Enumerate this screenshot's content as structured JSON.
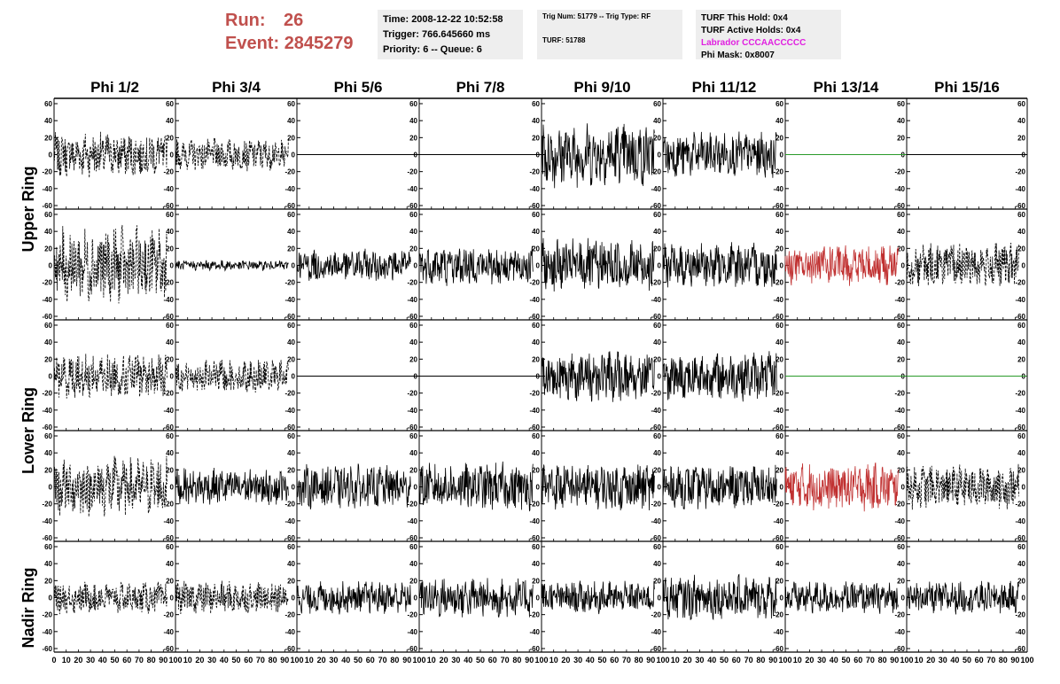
{
  "header": {
    "run_label": "Run:",
    "run_value": "26",
    "event_label": "Event:",
    "event_value": "2845279"
  },
  "info_boxes": {
    "time": "Time: 2008-12-22 10:52:58",
    "trigger": "Trigger: 766.645660 ms",
    "priority": "Priority: 6 -- Queue: 6",
    "trig_num": "Trig Num: 51779 -- Trig Type: RF",
    "turf": "TURF: 51788",
    "turf_this_hold": "TURF This Hold: 0x4",
    "turf_active_holds": "TURF Active Holds: 0x4",
    "labrador": "Labrador CCCAACCCCC",
    "phi_mask": "Phi Mask: 0x8007"
  },
  "colors": {
    "header_red": "#c0504d",
    "labrador_magenta": "#e020e0",
    "trace_black": "#000000",
    "trace_red": "#c03030",
    "trace_green": "#2a9a2a",
    "info_bg": "#eeeeee"
  },
  "chart_data": {
    "type": "line",
    "columns": [
      "Phi 1/2",
      "Phi 3/4",
      "Phi 5/6",
      "Phi 7/8",
      "Phi 9/10",
      "Phi 11/12",
      "Phi 13/14",
      "Phi 15/16"
    ],
    "ring_labels": [
      "Upper Ring",
      "Lower Ring",
      "Nadir Ring"
    ],
    "xlim": [
      0,
      100
    ],
    "ylim": [
      -60,
      60
    ],
    "y_ticks": [
      60,
      40,
      20,
      0,
      -20,
      -40,
      -60
    ],
    "x_ticks": [
      0,
      10,
      20,
      30,
      40,
      50,
      60,
      70,
      80,
      90,
      100
    ],
    "x_tick_labels": [
      "0",
      "10",
      "20",
      "30",
      "40",
      "50",
      "60",
      "70",
      "80",
      "90",
      "100"
    ],
    "x_tick_labels_short": [
      "10",
      "20",
      "30",
      "40",
      "50",
      "60",
      "70",
      "80",
      "90",
      "100"
    ],
    "trace_x_range": [
      0,
      93
    ],
    "panel_rows": [
      [
        {
          "style": "dashed",
          "amp": 22
        },
        {
          "style": "dashed",
          "amp": 16
        },
        {
          "style": "flat"
        },
        {
          "style": "flat"
        },
        {
          "style": "solid",
          "amp": 32
        },
        {
          "style": "solid",
          "amp": 22
        },
        {
          "style": "flat_green"
        },
        {
          "style": "flat"
        }
      ],
      [
        {
          "style": "dashed",
          "amp": 38
        },
        {
          "style": "solid",
          "amp": 5
        },
        {
          "style": "solid",
          "amp": 16
        },
        {
          "style": "solid",
          "amp": 20
        },
        {
          "style": "solid",
          "amp": 26
        },
        {
          "style": "solid",
          "amp": 22
        },
        {
          "style": "solid_red",
          "amp": 20
        },
        {
          "style": "dashed",
          "amp": 22
        }
      ],
      [
        {
          "style": "dashed",
          "amp": 22
        },
        {
          "style": "dashed",
          "amp": 16
        },
        {
          "style": "flat"
        },
        {
          "style": "flat"
        },
        {
          "style": "solid",
          "amp": 26
        },
        {
          "style": "solid",
          "amp": 24
        },
        {
          "style": "flat_green"
        },
        {
          "style": "flat_green"
        }
      ],
      [
        {
          "style": "dashed",
          "amp": 30
        },
        {
          "style": "solid",
          "amp": 18
        },
        {
          "style": "solid",
          "amp": 22
        },
        {
          "style": "solid",
          "amp": 24
        },
        {
          "style": "solid",
          "amp": 24
        },
        {
          "style": "solid",
          "amp": 22
        },
        {
          "style": "solid_red",
          "amp": 24
        },
        {
          "style": "dashed",
          "amp": 22
        }
      ],
      [
        {
          "style": "dashed",
          "amp": 16
        },
        {
          "style": "dashed",
          "amp": 16
        },
        {
          "style": "solid",
          "amp": 16
        },
        {
          "style": "solid",
          "amp": 20
        },
        {
          "style": "solid",
          "amp": 16
        },
        {
          "style": "solid",
          "amp": 22
        },
        {
          "style": "solid",
          "amp": 16
        },
        {
          "style": "solid",
          "amp": 16
        }
      ]
    ]
  }
}
